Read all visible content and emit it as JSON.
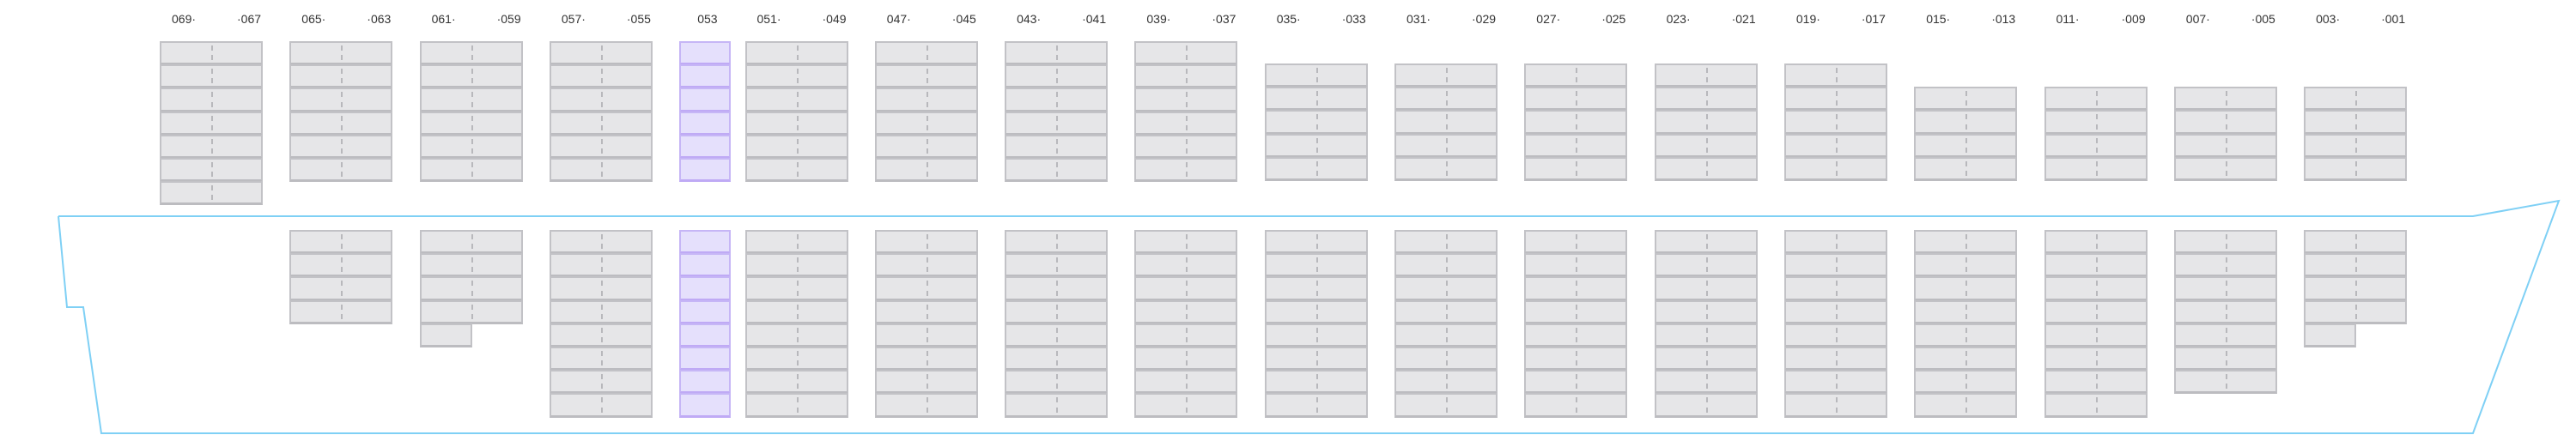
{
  "colors": {
    "hull": "#7fd0f5",
    "slot": "#e6e6e8",
    "slot_border": "#c2c2c6",
    "highlight": "#e5e0fc",
    "highlight_border": "#c6b6f6"
  },
  "highlighted_bay": "053",
  "bays": [
    {
      "left": "069·",
      "right": "·067",
      "deck_tiers": 7,
      "hold_tiers": 0,
      "hold_extra_half": false
    },
    {
      "left": "065·",
      "right": "·063",
      "deck_tiers": 6,
      "hold_tiers": 4,
      "hold_extra_half": false
    },
    {
      "left": "061·",
      "right": "·059",
      "deck_tiers": 6,
      "hold_tiers": 4,
      "hold_extra_half": true
    },
    {
      "left": "057·",
      "right": "·055",
      "deck_tiers": 6,
      "hold_tiers": 8,
      "hold_extra_half": false
    },
    {
      "single": "053",
      "deck_tiers": 6,
      "hold_tiers": 8,
      "hold_extra_half": false,
      "highlighted": true
    },
    {
      "left": "051·",
      "right": "·049",
      "deck_tiers": 6,
      "hold_tiers": 8,
      "hold_extra_half": false
    },
    {
      "left": "047·",
      "right": "·045",
      "deck_tiers": 6,
      "hold_tiers": 8,
      "hold_extra_half": false
    },
    {
      "left": "043·",
      "right": "·041",
      "deck_tiers": 6,
      "hold_tiers": 8,
      "hold_extra_half": false
    },
    {
      "left": "039·",
      "right": "·037",
      "deck_tiers": 6,
      "hold_tiers": 8,
      "hold_extra_half": false
    },
    {
      "left": "035·",
      "right": "·033",
      "deck_tiers": 5,
      "hold_tiers": 8,
      "hold_extra_half": false
    },
    {
      "left": "031·",
      "right": "·029",
      "deck_tiers": 5,
      "hold_tiers": 8,
      "hold_extra_half": false
    },
    {
      "left": "027·",
      "right": "·025",
      "deck_tiers": 5,
      "hold_tiers": 8,
      "hold_extra_half": false
    },
    {
      "left": "023·",
      "right": "·021",
      "deck_tiers": 5,
      "hold_tiers": 8,
      "hold_extra_half": false
    },
    {
      "left": "019·",
      "right": "·017",
      "deck_tiers": 5,
      "hold_tiers": 8,
      "hold_extra_half": false
    },
    {
      "left": "015·",
      "right": "·013",
      "deck_tiers": 4,
      "hold_tiers": 8,
      "hold_extra_half": false
    },
    {
      "left": "011·",
      "right": "·009",
      "deck_tiers": 4,
      "hold_tiers": 8,
      "hold_extra_half": false
    },
    {
      "left": "007·",
      "right": "·005",
      "deck_tiers": 4,
      "hold_tiers": 7,
      "hold_extra_half": false
    },
    {
      "left": "003·",
      "right": "·001",
      "deck_tiers": 4,
      "hold_tiers": 4,
      "hold_extra_half": true
    }
  ]
}
